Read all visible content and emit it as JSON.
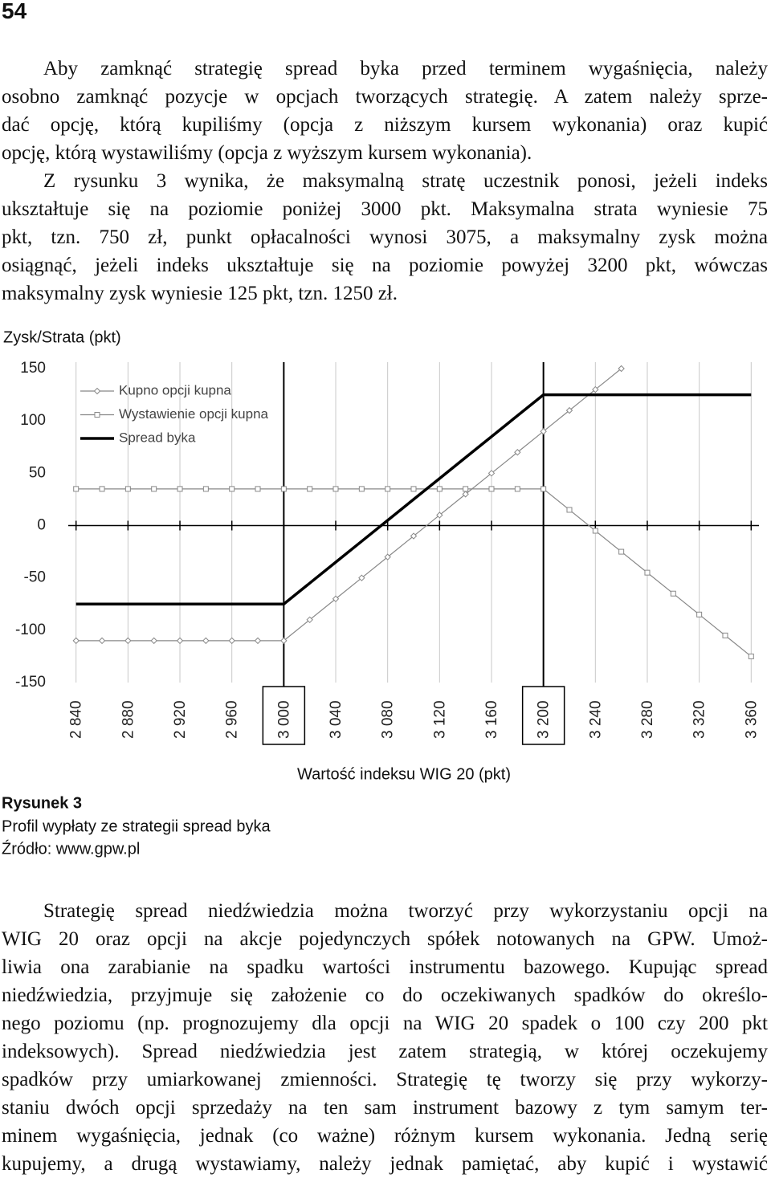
{
  "page_number": "54",
  "paragraphs_top": [
    {
      "lines": [
        "Aby zamknąć strategię spread byka przed terminem wygaśnięcia, należy",
        "osobno zamknąć pozycje w opcjach tworzących strategię. A zatem należy sprze-",
        "dać opcję, którą kupiliśmy (opcja z niższym kursem wykonania) oraz  kupić",
        "opcję, którą wystawiliśmy (opcja z wyższym kursem wykonania)."
      ]
    },
    {
      "lines": [
        "Z rysunku 3 wynika, że maksymalną stratę uczestnik ponosi, jeżeli indeks",
        "ukształtuje się na poziomie poniżej 3000 pkt. Maksymalna strata wyniesie 75",
        "pkt, tzn. 750 zł, punkt opłacalności wynosi 3075, a maksymalny zysk można",
        "osiągnąć, jeżeli indeks ukształtuje się na poziomie powyżej 3200 pkt, wówczas",
        "maksymalny zysk wyniesie 125 pkt, tzn. 1250 zł."
      ]
    }
  ],
  "figure": {
    "label": "Rysunek 3",
    "caption": "Profil wypłaty ze strategii spread byka",
    "source": "Źródło: www.gpw.pl"
  },
  "chart_data": {
    "type": "line",
    "y_label": "Zysk/Strata (pkt)",
    "x_label": "Wartość indeksu WIG 20 (pkt)",
    "x": [
      2840,
      2860,
      2880,
      2900,
      2920,
      2940,
      2960,
      2980,
      3000,
      3020,
      3040,
      3060,
      3080,
      3100,
      3120,
      3140,
      3160,
      3180,
      3200,
      3220,
      3240,
      3260,
      3280,
      3300,
      3320,
      3340,
      3360
    ],
    "series": [
      {
        "name": "Kupno opcji kupna",
        "color": "#888888",
        "marker": "diamond",
        "values": [
          -110,
          -110,
          -110,
          -110,
          -110,
          -110,
          -110,
          -110,
          -110,
          -90,
          -70,
          -50,
          -30,
          -10,
          10,
          30,
          50,
          70,
          90,
          110,
          130,
          150,
          null,
          null,
          null,
          null,
          null
        ]
      },
      {
        "name": "Wystawienie opcji kupna",
        "color": "#888888",
        "marker": "square",
        "values": [
          35,
          35,
          35,
          35,
          35,
          35,
          35,
          35,
          35,
          35,
          35,
          35,
          35,
          35,
          35,
          35,
          35,
          35,
          35,
          15,
          -5,
          -25,
          -45,
          -65,
          -85,
          -105,
          -125
        ]
      },
      {
        "name": "Spread byka",
        "color": "#000000",
        "marker": "none",
        "values": [
          -75,
          -75,
          -75,
          -75,
          -75,
          -75,
          -75,
          -75,
          -75,
          -55,
          -35,
          -15,
          5,
          25,
          45,
          65,
          85,
          105,
          125,
          125,
          125,
          125,
          125,
          125,
          125,
          125,
          125
        ]
      }
    ],
    "xlim": [
      2834,
      3366
    ],
    "xticks": [
      {
        "value": 2840,
        "label": "2 840"
      },
      {
        "value": 2880,
        "label": "2 880"
      },
      {
        "value": 2920,
        "label": "2 920"
      },
      {
        "value": 2960,
        "label": "2 960"
      },
      {
        "value": 3000,
        "label": "3 000"
      },
      {
        "value": 3040,
        "label": "3 040"
      },
      {
        "value": 3080,
        "label": "3 080"
      },
      {
        "value": 3120,
        "label": "3 120"
      },
      {
        "value": 3160,
        "label": "3 160"
      },
      {
        "value": 3200,
        "label": "3 200"
      },
      {
        "value": 3240,
        "label": "3 240"
      },
      {
        "value": 3280,
        "label": "3 280"
      },
      {
        "value": 3320,
        "label": "3 320"
      },
      {
        "value": 3360,
        "label": "3 360"
      }
    ],
    "ylim": [
      -150,
      150
    ],
    "yticks": [
      150,
      100,
      50,
      0,
      -50,
      -100,
      -150
    ],
    "highlight_x": [
      3000,
      3200
    ],
    "grid": true,
    "legend": "upper left"
  },
  "paragraphs_bottom": [
    {
      "lines": [
        "Strategię spread niedźwiedzia można tworzyć przy wykorzystaniu opcji na",
        "WIG 20 oraz opcji na akcje pojedynczych spółek notowanych na GPW. Umoż-",
        "liwia ona zarabianie na spadku wartości instrumentu bazowego. Kupując spread",
        "niedźwiedzia, przyjmuje się założenie co do oczekiwanych spadków do określo-",
        "nego poziomu (np. prognozujemy dla opcji na WIG 20 spadek o 100 czy 200 pkt",
        "indeksowych). Spread niedźwiedzia jest zatem strategią, w której oczekujemy",
        "spadków przy umiarkowanej zmienności. Strategię tę tworzy się przy wykorzy-",
        "staniu dwóch opcji sprzedaży na ten sam instrument bazowy z tym samym ter-",
        "minem wygaśnięcia, jednak (co ważne) różnym kursem wykonania. Jedną serię",
        "kupujemy, a drugą wystawiamy, należy jednak pamiętać, aby kupić i wystawić"
      ]
    }
  ]
}
